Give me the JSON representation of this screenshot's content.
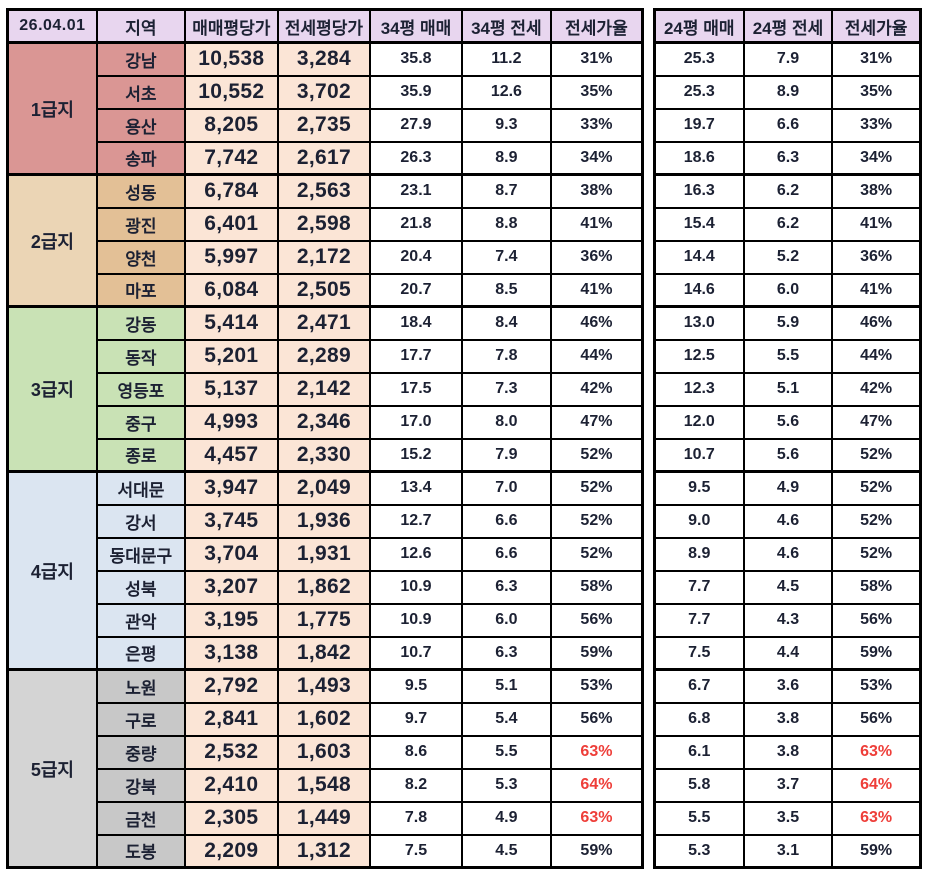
{
  "colors": {
    "header_bg": "#e8d6ef",
    "tier1_bg": "#da9694",
    "tier1_region_bg": "#da9694",
    "tier2_bg": "#ebd5b5",
    "tier2_region_bg": "#e3c096",
    "tier3_bg": "#c9e2b5",
    "tier3_region_bg": "#c9e2b5",
    "tier4_bg": "#dbe5f1",
    "tier4_region_bg": "#dbe5f1",
    "tier5_bg": "#d4d4d4",
    "tier5_region_bg": "#c8c8c8",
    "price_bg": "#fbe5d6",
    "text": "#1c2133",
    "highlight_red": "#ee3e39",
    "border": "#000000"
  },
  "chart_data": {
    "type": "table",
    "date": "26.04.01",
    "columns": [
      "지역",
      "매매평당가",
      "전세평당가",
      "34평 매매",
      "34평 전세",
      "전세가율",
      "24평 매매",
      "24평 전세",
      "전세가율"
    ],
    "groups": [
      {
        "tier": "1급지",
        "rows": [
          {
            "region": "강남",
            "sale": "10,538",
            "jeonse": "3,284",
            "s34": "35.8",
            "j34": "11.2",
            "r34": "31%",
            "s24": "25.3",
            "j24": "7.9",
            "r24": "31%",
            "red": false
          },
          {
            "region": "서초",
            "sale": "10,552",
            "jeonse": "3,702",
            "s34": "35.9",
            "j34": "12.6",
            "r34": "35%",
            "s24": "25.3",
            "j24": "8.9",
            "r24": "35%",
            "red": false
          },
          {
            "region": "용산",
            "sale": "8,205",
            "jeonse": "2,735",
            "s34": "27.9",
            "j34": "9.3",
            "r34": "33%",
            "s24": "19.7",
            "j24": "6.6",
            "r24": "33%",
            "red": false
          },
          {
            "region": "송파",
            "sale": "7,742",
            "jeonse": "2,617",
            "s34": "26.3",
            "j34": "8.9",
            "r34": "34%",
            "s24": "18.6",
            "j24": "6.3",
            "r24": "34%",
            "red": false
          }
        ]
      },
      {
        "tier": "2급지",
        "rows": [
          {
            "region": "성동",
            "sale": "6,784",
            "jeonse": "2,563",
            "s34": "23.1",
            "j34": "8.7",
            "r34": "38%",
            "s24": "16.3",
            "j24": "6.2",
            "r24": "38%",
            "red": false
          },
          {
            "region": "광진",
            "sale": "6,401",
            "jeonse": "2,598",
            "s34": "21.8",
            "j34": "8.8",
            "r34": "41%",
            "s24": "15.4",
            "j24": "6.2",
            "r24": "41%",
            "red": false
          },
          {
            "region": "양천",
            "sale": "5,997",
            "jeonse": "2,172",
            "s34": "20.4",
            "j34": "7.4",
            "r34": "36%",
            "s24": "14.4",
            "j24": "5.2",
            "r24": "36%",
            "red": false
          },
          {
            "region": "마포",
            "sale": "6,084",
            "jeonse": "2,505",
            "s34": "20.7",
            "j34": "8.5",
            "r34": "41%",
            "s24": "14.6",
            "j24": "6.0",
            "r24": "41%",
            "red": false
          }
        ]
      },
      {
        "tier": "3급지",
        "rows": [
          {
            "region": "강동",
            "sale": "5,414",
            "jeonse": "2,471",
            "s34": "18.4",
            "j34": "8.4",
            "r34": "46%",
            "s24": "13.0",
            "j24": "5.9",
            "r24": "46%",
            "red": false
          },
          {
            "region": "동작",
            "sale": "5,201",
            "jeonse": "2,289",
            "s34": "17.7",
            "j34": "7.8",
            "r34": "44%",
            "s24": "12.5",
            "j24": "5.5",
            "r24": "44%",
            "red": false
          },
          {
            "region": "영등포",
            "sale": "5,137",
            "jeonse": "2,142",
            "s34": "17.5",
            "j34": "7.3",
            "r34": "42%",
            "s24": "12.3",
            "j24": "5.1",
            "r24": "42%",
            "red": false
          },
          {
            "region": "중구",
            "sale": "4,993",
            "jeonse": "2,346",
            "s34": "17.0",
            "j34": "8.0",
            "r34": "47%",
            "s24": "12.0",
            "j24": "5.6",
            "r24": "47%",
            "red": false
          },
          {
            "region": "종로",
            "sale": "4,457",
            "jeonse": "2,330",
            "s34": "15.2",
            "j34": "7.9",
            "r34": "52%",
            "s24": "10.7",
            "j24": "5.6",
            "r24": "52%",
            "red": false
          }
        ]
      },
      {
        "tier": "4급지",
        "rows": [
          {
            "region": "서대문",
            "sale": "3,947",
            "jeonse": "2,049",
            "s34": "13.4",
            "j34": "7.0",
            "r34": "52%",
            "s24": "9.5",
            "j24": "4.9",
            "r24": "52%",
            "red": false
          },
          {
            "region": "강서",
            "sale": "3,745",
            "jeonse": "1,936",
            "s34": "12.7",
            "j34": "6.6",
            "r34": "52%",
            "s24": "9.0",
            "j24": "4.6",
            "r24": "52%",
            "red": false
          },
          {
            "region": "동대문구",
            "sale": "3,704",
            "jeonse": "1,931",
            "s34": "12.6",
            "j34": "6.6",
            "r34": "52%",
            "s24": "8.9",
            "j24": "4.6",
            "r24": "52%",
            "red": false
          },
          {
            "region": "성북",
            "sale": "3,207",
            "jeonse": "1,862",
            "s34": "10.9",
            "j34": "6.3",
            "r34": "58%",
            "s24": "7.7",
            "j24": "4.5",
            "r24": "58%",
            "red": false
          },
          {
            "region": "관악",
            "sale": "3,195",
            "jeonse": "1,775",
            "s34": "10.9",
            "j34": "6.0",
            "r34": "56%",
            "s24": "7.7",
            "j24": "4.3",
            "r24": "56%",
            "red": false
          },
          {
            "region": "은평",
            "sale": "3,138",
            "jeonse": "1,842",
            "s34": "10.7",
            "j34": "6.3",
            "r34": "59%",
            "s24": "7.5",
            "j24": "4.4",
            "r24": "59%",
            "red": false
          }
        ]
      },
      {
        "tier": "5급지",
        "rows": [
          {
            "region": "노원",
            "sale": "2,792",
            "jeonse": "1,493",
            "s34": "9.5",
            "j34": "5.1",
            "r34": "53%",
            "s24": "6.7",
            "j24": "3.6",
            "r24": "53%",
            "red": false
          },
          {
            "region": "구로",
            "sale": "2,841",
            "jeonse": "1,602",
            "s34": "9.7",
            "j34": "5.4",
            "r34": "56%",
            "s24": "6.8",
            "j24": "3.8",
            "r24": "56%",
            "red": false
          },
          {
            "region": "중량",
            "sale": "2,532",
            "jeonse": "1,603",
            "s34": "8.6",
            "j34": "5.5",
            "r34": "63%",
            "s24": "6.1",
            "j24": "3.8",
            "r24": "63%",
            "red": true
          },
          {
            "region": "강북",
            "sale": "2,410",
            "jeonse": "1,548",
            "s34": "8.2",
            "j34": "5.3",
            "r34": "64%",
            "s24": "5.8",
            "j24": "3.7",
            "r24": "64%",
            "red": true
          },
          {
            "region": "금천",
            "sale": "2,305",
            "jeonse": "1,449",
            "s34": "7.8",
            "j34": "4.9",
            "r34": "63%",
            "s24": "5.5",
            "j24": "3.5",
            "r24": "63%",
            "red": true
          },
          {
            "region": "도봉",
            "sale": "2,209",
            "jeonse": "1,312",
            "s34": "7.5",
            "j34": "4.5",
            "r34": "59%",
            "s24": "5.3",
            "j24": "3.1",
            "r24": "59%",
            "red": false
          }
        ]
      }
    ]
  }
}
